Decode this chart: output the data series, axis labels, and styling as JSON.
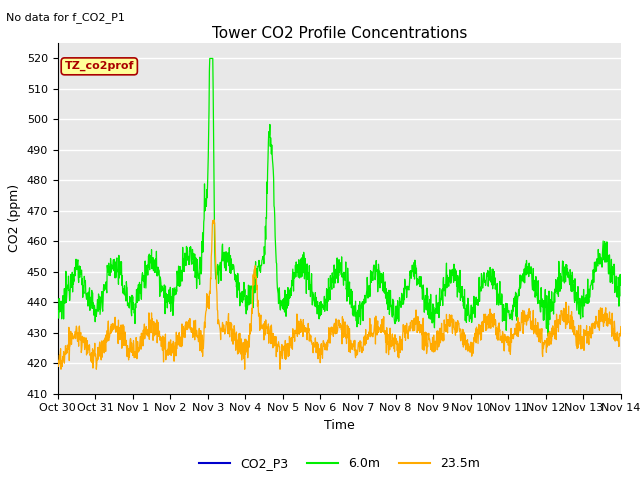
{
  "title": "Tower CO2 Profile Concentrations",
  "subtitle": "No data for f_CO2_P1",
  "xlabel": "Time",
  "ylabel": "CO2 (ppm)",
  "ylim": [
    410,
    525
  ],
  "yticks": [
    410,
    420,
    430,
    440,
    450,
    460,
    470,
    480,
    490,
    500,
    510,
    520
  ],
  "xtick_labels": [
    "Oct 30",
    "Oct 31",
    "Nov 1",
    "Nov 2",
    "Nov 3",
    "Nov 4",
    "Nov 5",
    "Nov 6",
    "Nov 7",
    "Nov 8",
    "Nov 9",
    "Nov 10",
    "Nov 11",
    "Nov 12",
    "Nov 13",
    "Nov 14"
  ],
  "color_6m": "#00ee00",
  "color_235m": "#ffaa00",
  "color_CO2P3": "#0000cc",
  "legend_labels": [
    "CO2_P3",
    "6.0m",
    "23.5m"
  ],
  "box_label": "TZ_co2prof",
  "box_facecolor": "#ffff99",
  "box_edgecolor": "#aa0000",
  "plot_bg_color": "#e8e8e8",
  "grid_color": "#ffffff",
  "title_fontsize": 11,
  "label_fontsize": 9,
  "tick_fontsize": 8,
  "legend_fontsize": 9
}
